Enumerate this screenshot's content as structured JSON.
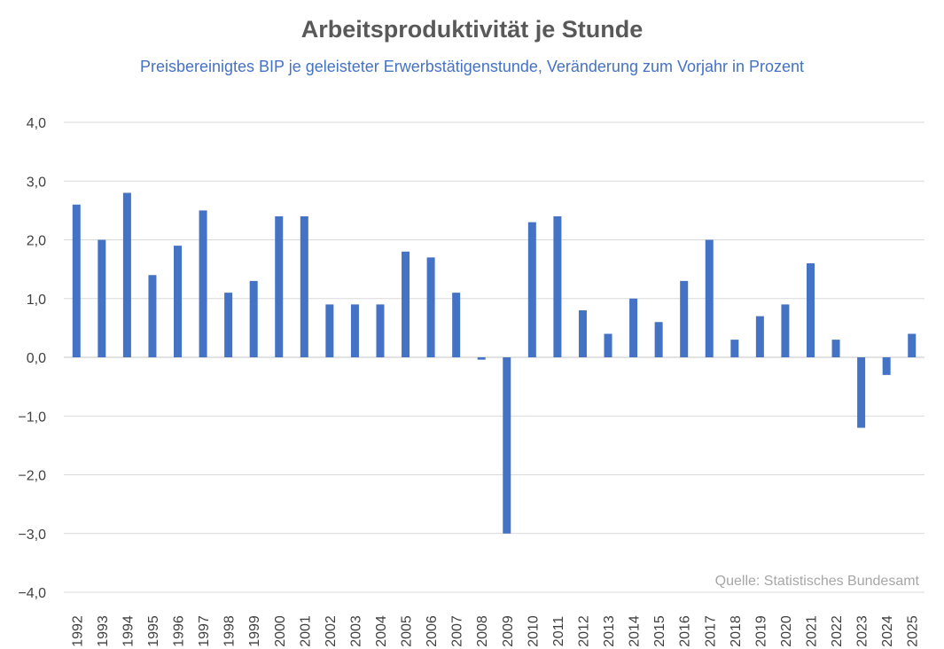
{
  "chart_data": {
    "type": "bar",
    "title": "Arbeitsproduktivität je Stunde",
    "subtitle": "Preisbereinigtes BIP je geleisteter Erwerbstätigenstunde, Veränderung zum Vorjahr in Prozent",
    "xlabel": "",
    "ylabel": "",
    "source": "Quelle: Statistisches Bundesamt",
    "ylim": [
      -4.0,
      4.0
    ],
    "yticks": [
      4.0,
      3.0,
      2.0,
      1.0,
      0.0,
      -1.0,
      -2.0,
      -3.0,
      -4.0
    ],
    "ytick_labels": [
      "4,0",
      "3,0",
      "2,0",
      "1,0",
      "0,0",
      "−1,0",
      "−2,0",
      "−3,0",
      "−4,0"
    ],
    "grid": true,
    "legend": "none",
    "bar_color": "#4472c4",
    "grid_color": "#d9d9d9",
    "categories": [
      "1992",
      "1993",
      "1994",
      "1995",
      "1996",
      "1997",
      "1998",
      "1999",
      "2000",
      "2001",
      "2002",
      "2003",
      "2004",
      "2005",
      "2006",
      "2007",
      "2008",
      "2009",
      "2010",
      "2011",
      "2012",
      "2013",
      "2014",
      "2015",
      "2016",
      "2017",
      "2018",
      "2019",
      "2020",
      "2021",
      "2022",
      "2023",
      "2024",
      "2025"
    ],
    "values": [
      2.6,
      2.0,
      2.8,
      1.4,
      1.9,
      2.5,
      1.1,
      1.3,
      2.4,
      2.4,
      0.9,
      0.9,
      0.9,
      1.8,
      1.7,
      1.1,
      -0.04,
      -3.0,
      2.3,
      2.4,
      0.8,
      0.4,
      1.0,
      0.6,
      1.3,
      2.0,
      0.3,
      0.7,
      0.9,
      1.6,
      0.3,
      -1.2,
      -0.3,
      0.4
    ]
  }
}
